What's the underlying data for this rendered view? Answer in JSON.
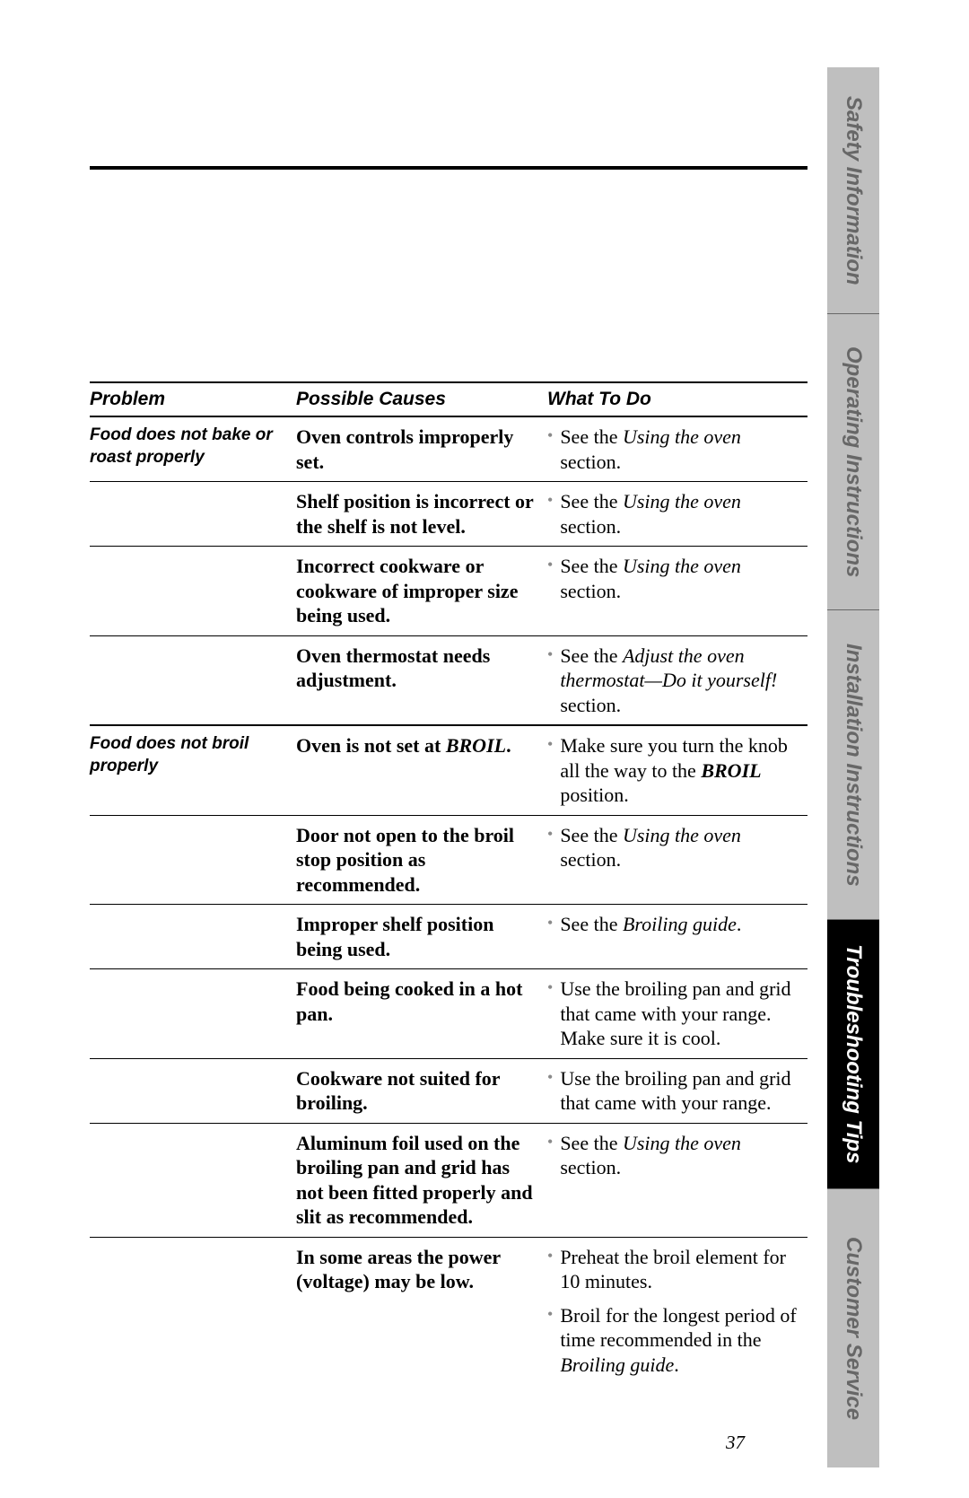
{
  "tabs": {
    "safety": "Safety Information",
    "operating": "Operating Instructions",
    "installation": "Installation Instructions",
    "trouble": "Troubleshooting Tips",
    "customer": "Customer Service"
  },
  "headers": {
    "problem": "Problem",
    "causes": "Possible Causes",
    "todo": "What To Do"
  },
  "page_number": "37",
  "groups": [
    {
      "problem": "Food does not bake or roast properly",
      "rows": [
        {
          "cause": "Oven controls improperly set.",
          "todos": [
            {
              "pre": "See the ",
              "em": "Using the oven",
              "post": " section."
            }
          ]
        },
        {
          "cause": "Shelf position is incorrect or the shelf is not level.",
          "todos": [
            {
              "pre": "See the ",
              "em": "Using the oven",
              "post": " section."
            }
          ]
        },
        {
          "cause": "Incorrect cookware or cookware of improper size being used.",
          "todos": [
            {
              "pre": "See the ",
              "em": "Using the oven",
              "post": " section."
            }
          ]
        },
        {
          "cause": "Oven thermostat needs adjustment.",
          "todos": [
            {
              "pre": "See the ",
              "em": "Adjust the oven thermostat—Do it yourself!",
              "post": " section."
            }
          ]
        }
      ]
    },
    {
      "problem": "Food does not broil properly",
      "rows": [
        {
          "cause_html": "Oven is not set at <span class=\"bolditalic\">BROIL</span>.",
          "todos": [
            {
              "html": "Make sure you turn the knob all the way to the <span class=\"bolditalic\">BROIL</span> position."
            }
          ]
        },
        {
          "cause": "Door not open to the broil stop position as recommended.",
          "todos": [
            {
              "pre": "See the ",
              "em": "Using the oven",
              "post": " section."
            }
          ]
        },
        {
          "cause": "Improper shelf position being used.",
          "todos": [
            {
              "pre": "See the ",
              "em": "Broiling guide",
              "post": "."
            }
          ]
        },
        {
          "cause": "Food being cooked in a hot pan.",
          "todos": [
            {
              "plain": "Use the broiling pan and grid that came with your range. Make sure it is cool."
            }
          ]
        },
        {
          "cause": "Cookware not suited for broiling.",
          "todos": [
            {
              "plain": "Use the broiling pan and grid that came with your range."
            }
          ]
        },
        {
          "cause": "Aluminum foil used on the broiling pan and grid has not been fitted properly and slit as recommended.",
          "todos": [
            {
              "pre": "See the ",
              "em": "Using the oven",
              "post": " section."
            }
          ]
        },
        {
          "cause": "In some areas the power (voltage) may be low.",
          "todos": [
            {
              "plain": "Preheat the broil element for 10 minutes."
            },
            {
              "pre": "Broil for the longest period of time recommended in the ",
              "em": "Broiling guide",
              "post": "."
            }
          ]
        }
      ]
    }
  ]
}
